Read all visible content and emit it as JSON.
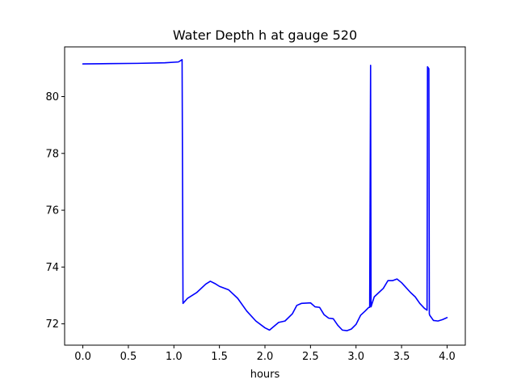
{
  "chart_data": {
    "type": "line",
    "title": "Water Depth h at gauge 520",
    "xlabel": "hours",
    "ylabel": "",
    "xlim": [
      -0.2,
      4.2
    ],
    "ylim": [
      71.25,
      81.75
    ],
    "xticks": [
      0.0,
      0.5,
      1.0,
      1.5,
      2.0,
      2.5,
      3.0,
      3.5,
      4.0
    ],
    "xtick_labels": [
      "0.0",
      "0.5",
      "1.0",
      "1.5",
      "2.0",
      "2.5",
      "3.0",
      "3.5",
      "4.0"
    ],
    "yticks": [
      72,
      74,
      76,
      78,
      80
    ],
    "ytick_labels": [
      "72",
      "74",
      "76",
      "78",
      "80"
    ],
    "grid": false,
    "legend": "none",
    "series": [
      {
        "color": "#0000ff",
        "x": [
          0.0,
          0.3,
          0.6,
          0.9,
          1.05,
          1.09,
          1.1,
          1.15,
          1.25,
          1.35,
          1.4,
          1.45,
          1.5,
          1.6,
          1.7,
          1.8,
          1.9,
          2.0,
          2.05,
          2.15,
          2.22,
          2.3,
          2.35,
          2.4,
          2.5,
          2.55,
          2.6,
          2.65,
          2.7,
          2.75,
          2.8,
          2.85,
          2.9,
          2.95,
          3.0,
          3.05,
          3.1,
          3.14,
          3.15,
          3.16,
          3.165,
          3.2,
          3.3,
          3.35,
          3.4,
          3.45,
          3.5,
          3.6,
          3.65,
          3.7,
          3.75,
          3.78,
          3.785,
          3.8,
          3.805,
          3.81,
          3.85,
          3.9,
          3.95,
          4.0
        ],
        "values": [
          81.15,
          81.16,
          81.17,
          81.19,
          81.22,
          81.3,
          72.72,
          72.9,
          73.1,
          73.4,
          73.5,
          73.42,
          73.32,
          73.2,
          72.9,
          72.45,
          72.1,
          71.86,
          71.78,
          72.05,
          72.1,
          72.35,
          72.65,
          72.72,
          72.74,
          72.6,
          72.58,
          72.32,
          72.2,
          72.18,
          71.95,
          71.78,
          71.76,
          71.82,
          71.98,
          72.3,
          72.45,
          72.58,
          72.58,
          81.1,
          72.6,
          72.95,
          73.25,
          73.52,
          73.52,
          73.58,
          73.45,
          73.1,
          72.95,
          72.72,
          72.55,
          72.48,
          81.05,
          80.98,
          72.35,
          72.3,
          72.12,
          72.1,
          72.15,
          72.22
        ]
      }
    ]
  }
}
